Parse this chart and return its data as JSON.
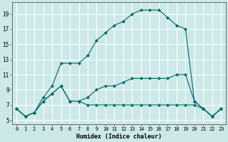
{
  "xlabel": "Humidex (Indice chaleur)",
  "bg_color": "#cce8e8",
  "grid_color": "#ffffff",
  "line_color": "#006666",
  "xlim": [
    -0.5,
    23.5
  ],
  "ylim": [
    4.5,
    20.5
  ],
  "xticks": [
    0,
    1,
    2,
    3,
    4,
    5,
    6,
    7,
    8,
    9,
    10,
    11,
    12,
    13,
    14,
    15,
    16,
    17,
    18,
    19,
    20,
    21,
    22,
    23
  ],
  "yticks": [
    5,
    7,
    9,
    11,
    13,
    15,
    17,
    19
  ],
  "line1_x": [
    0,
    1,
    2,
    3,
    4,
    5,
    6,
    7,
    8,
    9,
    10,
    11,
    12,
    13,
    14,
    15,
    16,
    17,
    18,
    19,
    20,
    21,
    22,
    23
  ],
  "line1_y": [
    6.5,
    5.5,
    6.0,
    7.5,
    8.5,
    9.5,
    7.5,
    7.5,
    7.0,
    7.0,
    7.0,
    7.0,
    7.0,
    7.0,
    7.0,
    7.0,
    7.0,
    7.0,
    7.0,
    7.0,
    7.0,
    6.5,
    5.5,
    6.5
  ],
  "line2_x": [
    0,
    1,
    2,
    3,
    4,
    5,
    6,
    7,
    8,
    9,
    10,
    11,
    12,
    13,
    14,
    15,
    16,
    17,
    18,
    19,
    20,
    21,
    22,
    23
  ],
  "line2_y": [
    6.5,
    5.5,
    6.0,
    7.5,
    8.5,
    9.5,
    7.5,
    7.5,
    8.0,
    9.0,
    9.5,
    9.5,
    10.0,
    10.5,
    10.5,
    10.5,
    10.5,
    10.5,
    11.0,
    11.0,
    7.5,
    6.5,
    5.5,
    6.5
  ],
  "line3_x": [
    0,
    1,
    2,
    3,
    4,
    5,
    6,
    7,
    8,
    9,
    10,
    11,
    12,
    13,
    14,
    15,
    16,
    17,
    18,
    19,
    20,
    21,
    22,
    23
  ],
  "line3_y": [
    6.5,
    5.5,
    6.0,
    8.0,
    9.5,
    12.5,
    12.5,
    12.5,
    13.5,
    15.5,
    16.5,
    17.5,
    18.0,
    19.0,
    19.5,
    19.5,
    19.5,
    18.5,
    17.5,
    17.0,
    7.5,
    6.5,
    5.5,
    6.5
  ]
}
